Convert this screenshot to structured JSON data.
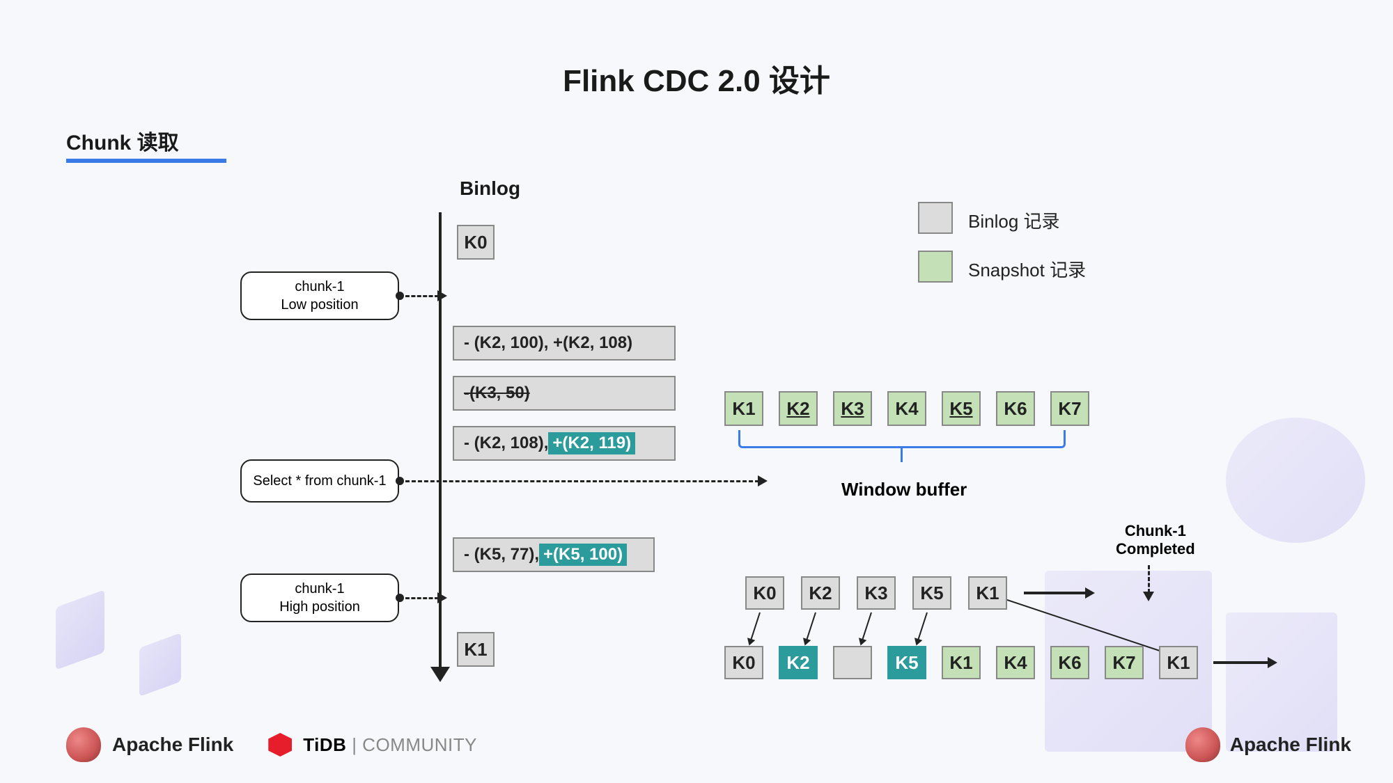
{
  "title": "Flink CDC 2.0 设计",
  "subtitle": "Chunk 读取",
  "binlogLabel": "Binlog",
  "legend": {
    "binlog": "Binlog 记录",
    "snapshot": "Snapshot 记录"
  },
  "colors": {
    "accent_blue": "#3a7be8",
    "gray_fill": "#dcdcdc",
    "green_fill": "#c3e0b7",
    "teal_fill": "#2b9b9b",
    "border": "#888888",
    "text": "#1a1a1a",
    "background": "#f7f8fb"
  },
  "labels": {
    "low": {
      "line1": "chunk-1",
      "line2": "Low position"
    },
    "select": "Select * from chunk-1",
    "high": {
      "line1": "chunk-1",
      "line2": "High position"
    }
  },
  "timeline": {
    "k0": "K0",
    "row1": "- (K2, 100), +(K2, 108)",
    "row2": "-(K3, 50)",
    "row3_a": "- (K2, 108), ",
    "row3_b": "+(K2, 119)",
    "row4_a": "- (K5, 77), ",
    "row4_b": "+(K5, 100)",
    "k1": "K1"
  },
  "windowBuffer": {
    "label": "Window buffer",
    "items": [
      "K1",
      "K2",
      "K3",
      "K4",
      "K5",
      "K6",
      "K7"
    ]
  },
  "outputTop": [
    "K0",
    "K2",
    "K3",
    "K5",
    "K1"
  ],
  "outputBottom": [
    {
      "t": "K0",
      "c": "gray"
    },
    {
      "t": "K2",
      "c": "teal"
    },
    {
      "t": "",
      "c": "gray"
    },
    {
      "t": "K5",
      "c": "teal"
    },
    {
      "t": "K1",
      "c": "green"
    },
    {
      "t": "K4",
      "c": "green"
    },
    {
      "t": "K6",
      "c": "green"
    },
    {
      "t": "K7",
      "c": "green"
    },
    {
      "t": "K1",
      "c": "gray"
    }
  ],
  "chunkCompleted": "Chunk-1\nCompleted",
  "footer": {
    "flink": "Apache Flink",
    "tidb": "TiDB",
    "community": " | COMMUNITY"
  }
}
